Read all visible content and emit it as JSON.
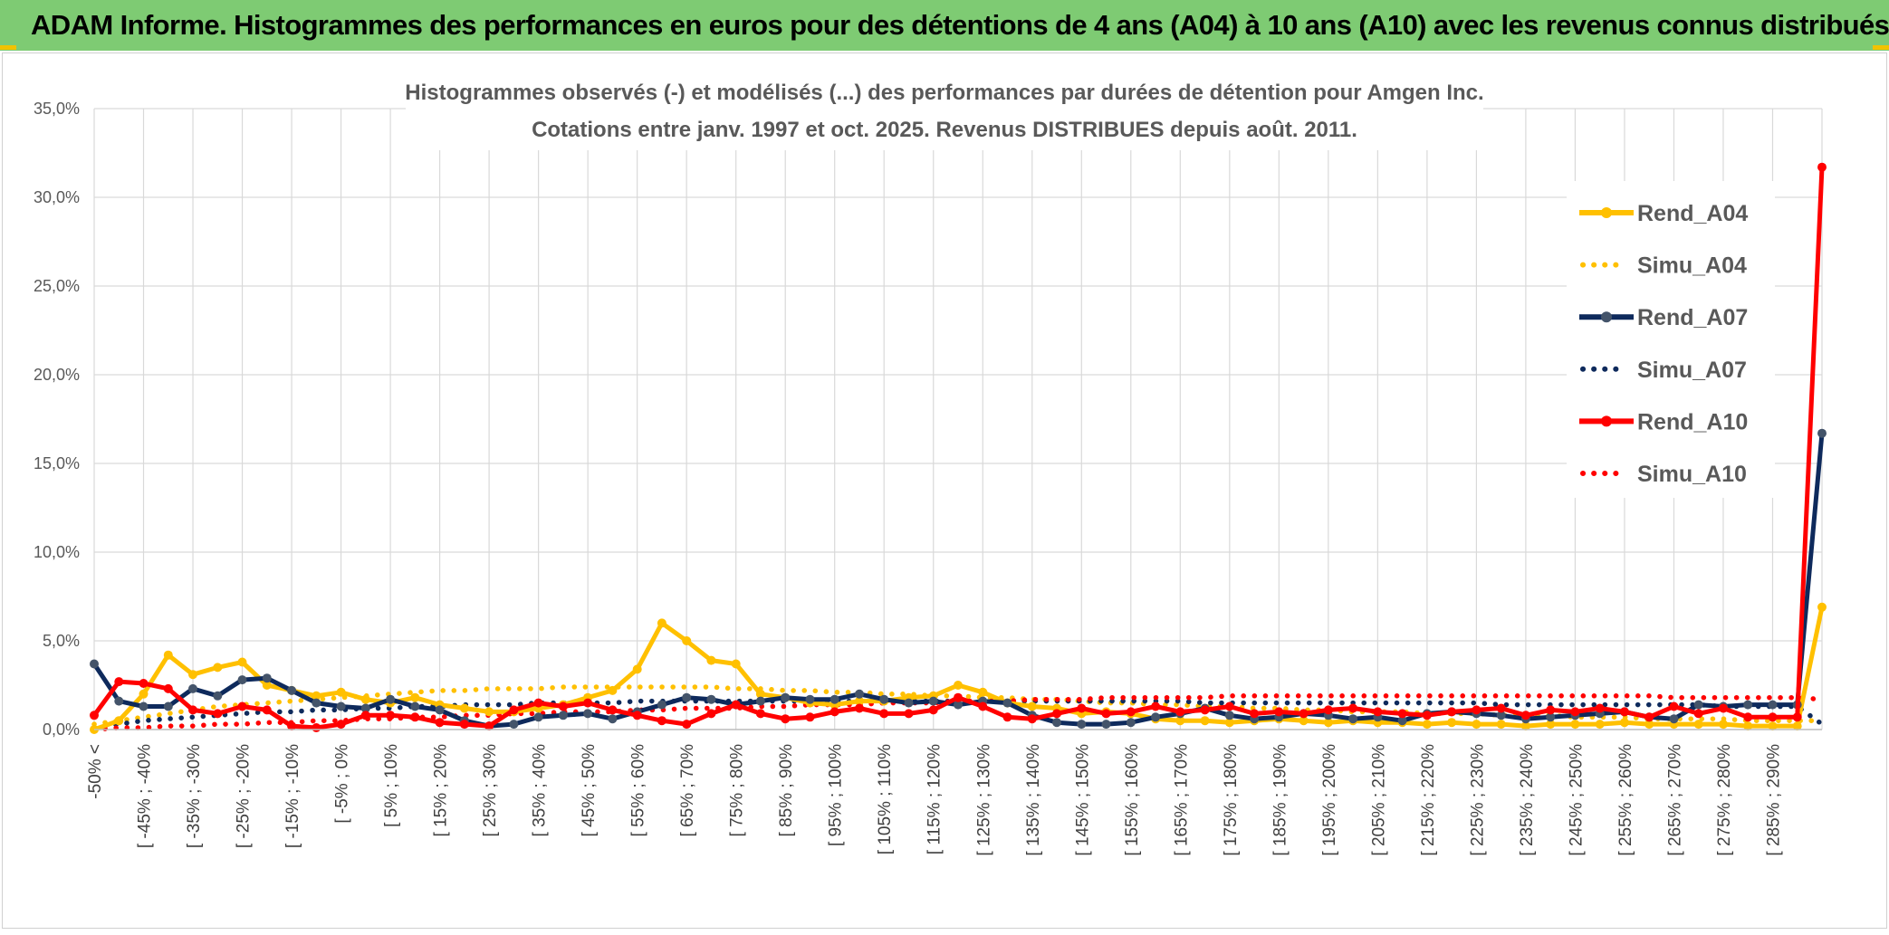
{
  "banner": {
    "title": "ADAM Informe. Histogrammes des performances en euros pour des détentions de 4 ans (A04) à 10 ans (A10) avec les revenus connus distribués"
  },
  "colors": {
    "banner": "#7ecb73",
    "yellow": "#ffc000",
    "navy": "#0e2a5c",
    "red": "#ff0000",
    "grid": "#d9d9d9",
    "text": "#595959"
  },
  "chart_data": {
    "type": "line",
    "title": [
      "Histogrammes observés (-) et modélisés (...) des performances par durées de détention pour Amgen Inc.",
      "Cotations entre janv. 1997 et oct. 2025. Revenus DISTRIBUES depuis août. 2011."
    ],
    "ylim": [
      0,
      35
    ],
    "yticks": [
      0,
      5,
      10,
      15,
      20,
      25,
      30,
      35
    ],
    "ytick_labels": [
      "0,0%",
      "5,0%",
      "10,0%",
      "15,0%",
      "20,0%",
      "25,0%",
      "30,0%",
      "35,0%"
    ],
    "x_labels": [
      "-50% <",
      "[ -45% ; -40%",
      "[ -35% ; -30%",
      "[ -25% ; -20%",
      "[ -15% ; -10%",
      "[ -5% ; 0%",
      "[ 5% ; 10%",
      "[ 15% ; 20%",
      "[ 25% ; 30%",
      "[ 35% ; 40%",
      "[ 45% ; 50%",
      "[ 55% ; 60%",
      "[ 65% ; 70%",
      "[ 75% ; 80%",
      "[ 85% ; 90%",
      "[ 95% ; 100%",
      "[ 105% ; 110%",
      "[ 115% ; 120%",
      "[ 125% ; 130%",
      "[ 135% ; 140%",
      "[ 145% ; 150%",
      "[ 155% ; 160%",
      "[ 165% ; 170%",
      "[ 175% ; 180%",
      "[ 185% ; 190%",
      "[ 195% ; 200%",
      "[ 205% ; 210%",
      "[ 215% ; 220%",
      "[ 225% ; 230%",
      "[ 235% ; 240%",
      "[ 245% ; 250%",
      "[ 255% ; 260%",
      "[ 265% ; 270%",
      "[ 275% ; 280%",
      "[ 285% ; 290%"
    ],
    "n_points": 71,
    "series": [
      {
        "name": "Rend_A04",
        "style": "solid",
        "color": "#ffc000",
        "values": [
          0.0,
          0.5,
          2.0,
          4.2,
          3.1,
          3.5,
          3.8,
          2.5,
          2.2,
          1.9,
          2.1,
          1.7,
          1.5,
          1.8,
          1.4,
          1.2,
          1.0,
          1.0,
          1.2,
          1.4,
          1.8,
          2.2,
          3.4,
          6.0,
          5.0,
          3.9,
          3.7,
          2.0,
          1.8,
          1.5,
          1.4,
          1.6,
          1.6,
          1.8,
          1.9,
          2.5,
          2.1,
          1.5,
          1.3,
          1.2,
          0.9,
          1.0,
          0.9,
          0.6,
          0.5,
          0.5,
          0.4,
          0.5,
          0.6,
          0.5,
          0.4,
          0.5,
          0.4,
          0.4,
          0.3,
          0.4,
          0.3,
          0.3,
          0.2,
          0.3,
          0.3,
          0.3,
          0.4,
          0.3,
          0.3,
          0.3,
          0.3,
          0.2,
          0.2,
          0.2,
          6.9
        ]
      },
      {
        "name": "Simu_A04",
        "style": "dotted",
        "color": "#ffc000",
        "values": [
          0.3,
          0.5,
          0.7,
          0.9,
          1.1,
          1.3,
          1.4,
          1.5,
          1.6,
          1.7,
          1.8,
          1.9,
          2.0,
          2.1,
          2.2,
          2.2,
          2.3,
          2.3,
          2.3,
          2.4,
          2.4,
          2.4,
          2.4,
          2.4,
          2.4,
          2.4,
          2.3,
          2.3,
          2.2,
          2.2,
          2.1,
          2.1,
          2.0,
          2.0,
          1.9,
          1.9,
          1.8,
          1.8,
          1.7,
          1.7,
          1.6,
          1.5,
          1.5,
          1.4,
          1.4,
          1.3,
          1.3,
          1.2,
          1.2,
          1.1,
          1.1,
          1.0,
          1.0,
          1.0,
          0.9,
          0.9,
          0.9,
          0.8,
          0.8,
          0.8,
          0.7,
          0.7,
          0.7,
          0.6,
          0.6,
          0.6,
          0.6,
          0.5,
          0.5,
          0.5,
          0.5
        ]
      },
      {
        "name": "Rend_A07",
        "style": "solid",
        "color": "#0e2a5c",
        "values": [
          3.7,
          1.6,
          1.3,
          1.3,
          2.3,
          1.9,
          2.8,
          2.9,
          2.2,
          1.5,
          1.3,
          1.2,
          1.7,
          1.3,
          1.1,
          0.5,
          0.2,
          0.3,
          0.7,
          0.8,
          0.9,
          0.6,
          1.0,
          1.4,
          1.8,
          1.7,
          1.4,
          1.6,
          1.8,
          1.7,
          1.7,
          2.0,
          1.7,
          1.5,
          1.6,
          1.4,
          1.6,
          1.5,
          0.8,
          0.4,
          0.3,
          0.3,
          0.4,
          0.7,
          0.9,
          1.2,
          0.8,
          0.6,
          0.7,
          0.9,
          0.8,
          0.6,
          0.7,
          0.5,
          0.9,
          1.0,
          0.9,
          0.8,
          0.6,
          0.7,
          0.8,
          0.9,
          1.0,
          0.7,
          0.6,
          1.4,
          1.3,
          1.4,
          1.4,
          1.4,
          16.7
        ]
      },
      {
        "name": "Simu_A07",
        "style": "dotted",
        "color": "#0e2a5c",
        "values": [
          0.1,
          0.3,
          0.5,
          0.6,
          0.7,
          0.8,
          0.9,
          1.0,
          1.0,
          1.1,
          1.1,
          1.2,
          1.2,
          1.3,
          1.3,
          1.4,
          1.4,
          1.4,
          1.5,
          1.5,
          1.5,
          1.5,
          1.6,
          1.6,
          1.6,
          1.6,
          1.6,
          1.6,
          1.6,
          1.6,
          1.6,
          1.6,
          1.6,
          1.6,
          1.6,
          1.6,
          1.6,
          1.6,
          1.6,
          1.6,
          1.6,
          1.6,
          1.6,
          1.6,
          1.6,
          1.5,
          1.5,
          1.5,
          1.5,
          1.5,
          1.5,
          1.5,
          1.5,
          1.5,
          1.5,
          1.5,
          1.5,
          1.4,
          1.4,
          1.4,
          1.4,
          1.4,
          1.4,
          1.4,
          1.4,
          1.4,
          1.3,
          1.3,
          1.3,
          1.3,
          0.3
        ]
      },
      {
        "name": "Rend_A10",
        "style": "solid",
        "color": "#ff0000",
        "values": [
          0.8,
          2.7,
          2.6,
          2.3,
          1.1,
          0.9,
          1.3,
          1.1,
          0.2,
          0.1,
          0.3,
          0.8,
          0.8,
          0.7,
          0.4,
          0.3,
          0.2,
          1.1,
          1.5,
          1.3,
          1.5,
          1.1,
          0.8,
          0.5,
          0.3,
          0.9,
          1.4,
          0.9,
          0.6,
          0.7,
          1.0,
          1.2,
          0.9,
          0.9,
          1.1,
          1.8,
          1.3,
          0.7,
          0.6,
          0.9,
          1.2,
          0.9,
          1.0,
          1.3,
          1.0,
          1.1,
          1.3,
          0.9,
          1.0,
          0.9,
          1.1,
          1.2,
          1.0,
          0.9,
          0.8,
          1.0,
          1.1,
          1.2,
          0.8,
          1.1,
          1.0,
          1.2,
          1.0,
          0.7,
          1.3,
          0.9,
          1.2,
          0.7,
          0.7,
          0.7,
          31.7
        ]
      },
      {
        "name": "Simu_A10",
        "style": "dotted",
        "color": "#ff0000",
        "values": [
          0.0,
          0.1,
          0.1,
          0.2,
          0.2,
          0.3,
          0.3,
          0.4,
          0.4,
          0.5,
          0.5,
          0.6,
          0.6,
          0.7,
          0.7,
          0.8,
          0.8,
          0.9,
          0.9,
          1.0,
          1.0,
          1.0,
          1.1,
          1.1,
          1.2,
          1.2,
          1.2,
          1.3,
          1.3,
          1.4,
          1.4,
          1.4,
          1.5,
          1.5,
          1.5,
          1.6,
          1.6,
          1.6,
          1.7,
          1.7,
          1.7,
          1.8,
          1.8,
          1.8,
          1.8,
          1.8,
          1.9,
          1.9,
          1.9,
          1.9,
          1.9,
          1.9,
          1.9,
          1.9,
          1.9,
          1.9,
          1.9,
          1.9,
          1.9,
          1.9,
          1.9,
          1.9,
          1.9,
          1.9,
          1.8,
          1.8,
          1.8,
          1.8,
          1.8,
          1.8,
          1.7
        ]
      }
    ],
    "legend": [
      "Rend_A04",
      "Simu_A04",
      "Rend_A07",
      "Simu_A07",
      "Rend_A10",
      "Simu_A10"
    ],
    "legend_position": "right",
    "grid": true
  }
}
